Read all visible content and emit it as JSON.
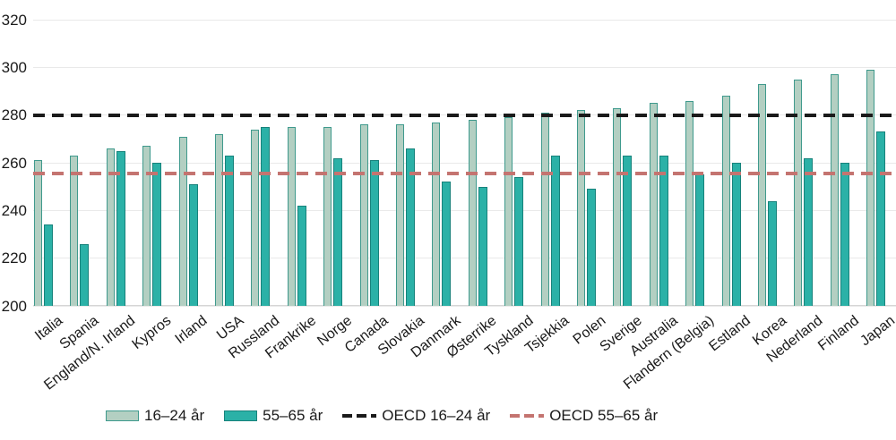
{
  "chart_data": {
    "type": "bar",
    "title": "",
    "categories": [
      "Italia",
      "Spania",
      "England/N. Irland",
      "Kypros",
      "Irland",
      "USA",
      "Russland",
      "Frankrike",
      "Norge",
      "Canada",
      "Slovakia",
      "Danmark",
      "Østerrike",
      "Tyskland",
      "Tsjekkia",
      "Polen",
      "Sverige",
      "Australia",
      "Flandern (Belgia)",
      "Estland",
      "Korea",
      "Nederland",
      "Finland",
      "Japan"
    ],
    "series": [
      {
        "name": "16–24 år",
        "fill": "#b3cfc2",
        "border": "#3f9a8d",
        "values": [
          261,
          263,
          266,
          267,
          271,
          272,
          274,
          275,
          275,
          276,
          276,
          277,
          278,
          279,
          281,
          282,
          283,
          285,
          286,
          288,
          293,
          295,
          297,
          299
        ]
      },
      {
        "name": "55–65 år",
        "fill": "#2bb1a7",
        "border": "#17827b",
        "values": [
          234,
          226,
          265,
          260,
          251,
          263,
          275,
          242,
          262,
          261,
          266,
          252,
          250,
          254,
          263,
          249,
          263,
          263,
          255,
          260,
          244,
          262,
          260,
          273
        ]
      }
    ],
    "reference_lines": [
      {
        "name": "OECD 16–24 år",
        "value": 280,
        "color": "#1a1a1a"
      },
      {
        "name": "OECD 55–65 år",
        "value": 255.5,
        "color": "#c47470"
      }
    ],
    "y_axis": {
      "min": 200,
      "max": 320,
      "ticks": [
        200,
        220,
        240,
        260,
        280,
        300,
        320
      ]
    },
    "xlabel": "",
    "ylabel": "",
    "grid": true,
    "legend_position": "bottom"
  },
  "colors": {
    "background": "#ffffff",
    "gridline": "#e9e9e9",
    "text": "#1a1a1a",
    "bar_young_fill": "#b3cfc2",
    "bar_young_border": "#3f9a8d",
    "bar_old_fill": "#2bb1a7",
    "bar_old_border": "#17827b",
    "oecd_young_line": "#1a1a1a",
    "oecd_old_line": "#c47470"
  }
}
